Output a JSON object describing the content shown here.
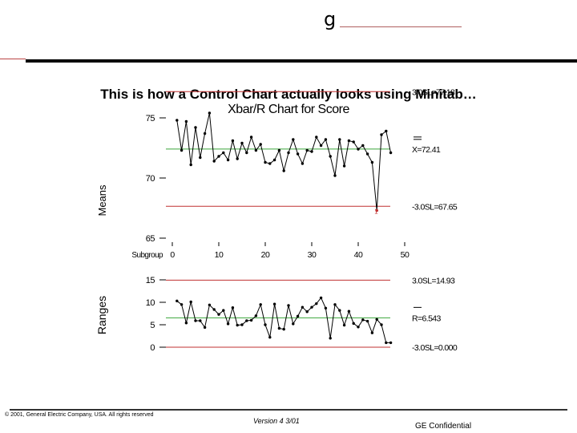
{
  "header": {
    "logo_text": "g"
  },
  "slide": {
    "title": "This is how a Control Chart actually looks using Minitab…",
    "chart_title": "Xbar/R Chart for Score"
  },
  "footer": {
    "copyright": "© 2001, General Electric Company, USA. All rights reserved",
    "version": "Version 4 3/01",
    "confidential": "GE Confidential"
  },
  "colors": {
    "limit_line": "#c03030",
    "center_line": "#3aa43a",
    "data_line": "#000000"
  },
  "chart_data": [
    {
      "type": "line",
      "title": "",
      "xlabel": "Subgroup",
      "ylabel": "Means",
      "xlim": [
        0,
        50
      ],
      "ylim": [
        65,
        77.5
      ],
      "xticks": [
        "0",
        "10",
        "20",
        "30",
        "40",
        "50"
      ],
      "yticks": [
        "65",
        "70",
        "75"
      ],
      "limits": {
        "ucl": 77.18,
        "center": 72.41,
        "lcl": 67.65
      },
      "limit_labels": {
        "ucl": "3.0SL=77.18",
        "center": "X=72.41",
        "lcl": "-3.0SL=67.65"
      },
      "x": [
        1,
        2,
        3,
        4,
        5,
        6,
        7,
        8,
        9,
        10,
        11,
        12,
        13,
        14,
        15,
        16,
        17,
        18,
        19,
        20,
        21,
        22,
        23,
        24,
        25,
        26,
        27,
        28,
        29,
        30,
        31,
        32,
        33,
        34,
        35,
        36,
        37,
        38,
        39,
        40,
        41,
        42,
        43,
        44,
        45,
        46,
        47
      ],
      "values": [
        74.8,
        72.3,
        74.7,
        71.1,
        74.2,
        71.7,
        73.7,
        75.4,
        71.4,
        71.8,
        72.1,
        71.5,
        73.1,
        71.6,
        72.9,
        72.1,
        73.4,
        72.3,
        72.8,
        71.3,
        71.2,
        71.5,
        72.3,
        70.6,
        72.1,
        73.2,
        72.0,
        71.2,
        72.3,
        72.2,
        73.4,
        72.7,
        73.2,
        71.8,
        70.2,
        73.2,
        71.0,
        73.1,
        73.0,
        72.4,
        72.7,
        72.0,
        71.3,
        67.3,
        73.6,
        73.9,
        72.1
      ]
    },
    {
      "type": "line",
      "title": "",
      "xlabel": "",
      "ylabel": "Ranges",
      "xlim": [
        0,
        50
      ],
      "ylim": [
        0,
        15
      ],
      "yticks": [
        "0",
        "5",
        "10",
        "15"
      ],
      "limits": {
        "ucl": 14.93,
        "center": 6.543,
        "lcl": 0.0
      },
      "limit_labels": {
        "ucl": "3.0SL=14.93",
        "center": "R=6.543",
        "lcl": "-3.0SL=0.000"
      },
      "x": [
        1,
        2,
        3,
        4,
        5,
        6,
        7,
        8,
        9,
        10,
        11,
        12,
        13,
        14,
        15,
        16,
        17,
        18,
        19,
        20,
        21,
        22,
        23,
        24,
        25,
        26,
        27,
        28,
        29,
        30,
        31,
        32,
        33,
        34,
        35,
        36,
        37,
        38,
        39,
        40,
        41,
        42,
        43,
        44,
        45,
        46,
        47
      ],
      "values": [
        10.3,
        9.5,
        5.4,
        10.1,
        5.9,
        5.9,
        4.4,
        9.4,
        8.4,
        7.3,
        8.2,
        5.2,
        8.8,
        4.9,
        5.0,
        5.9,
        6.0,
        7.0,
        9.5,
        5.0,
        2.2,
        9.6,
        4.2,
        4.0,
        9.3,
        5.2,
        6.9,
        8.9,
        7.9,
        8.9,
        9.7,
        11.0,
        8.7,
        2.0,
        9.5,
        8.2,
        4.9,
        8.0,
        5.3,
        4.5,
        6.1,
        5.8,
        3.2,
        6.2,
        5.0,
        1.0,
        1.0
      ]
    }
  ]
}
